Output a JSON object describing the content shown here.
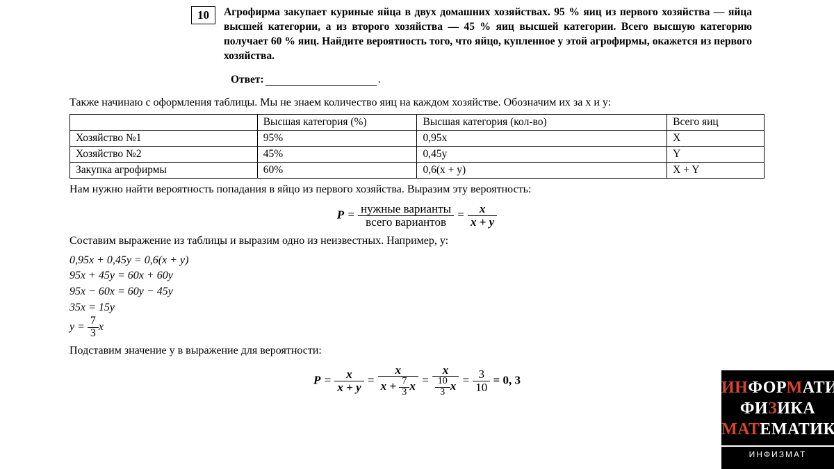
{
  "problem": {
    "number": "10",
    "text": "Агрофирма закупает куриные яйца в двух домашних хозяйствах. 95 % яиц из первого хозяйства — яйца высшей категории, а из второго хозяйства — 45 % яиц высшей категории. Всего высшую категорию получает 60 % яиц. Найдите вероятность того, что яйцо, купленное у этой агрофирмы, окажется из первого хозяйства.",
    "answer_label": "Ответ:"
  },
  "intro": "Также начинаю с оформления таблицы. Мы не знаем количество яиц на каждом хозяйстве. Обозначим их за х и у:",
  "table": {
    "headers": [
      "",
      "Высшая категория (%)",
      "Высшая категория (кол-во)",
      "Всего яиц"
    ],
    "rows": [
      [
        "Хозяйство №1",
        "95%",
        "0,95x",
        "X"
      ],
      [
        "Хозяйство №2",
        "45%",
        "0,45y",
        "Y"
      ],
      [
        "Закупка агрофирмы",
        "60%",
        "0,6(x + y)",
        "X + Y"
      ]
    ]
  },
  "after_table": "Нам нужно найти вероятность попадания в яйцо из первого хозяйства. Выразим эту вероятность:",
  "formula1": {
    "lhs": "P",
    "num1": "нужные варианты",
    "den1": "всего вариантов",
    "num2": "x",
    "den2": "x + y"
  },
  "mid_text": "Составим выражение из таблицы и выразим одно из неизвестных. Например, у:",
  "equations": [
    "0,95x + 0,45y = 0,6(x + y)",
    "95x + 45y = 60x + 60y",
    "95x − 60x = 60y − 45y",
    "35x = 15y"
  ],
  "eq_frac": {
    "lhs": "y =",
    "num": "7",
    "den": "3",
    "rhs": "x"
  },
  "sub_text": "Подставим значение у в выражение для вероятности:",
  "formula2": {
    "lhs": "P",
    "f1_num": "x",
    "f1_den": "x + y",
    "f2_num": "x",
    "f2_den_a": "x +",
    "f2_den_fnum": "7",
    "f2_den_fden": "3",
    "f2_den_b": "x",
    "f3_num": "x",
    "f3_den_fnum": "10",
    "f3_den_fden": "3",
    "f3_den_b": "x",
    "f4_num": "3",
    "f4_den": "10",
    "result": "= 0, 3"
  },
  "logo": {
    "row1a": "ИН",
    "row1b": "ФОР",
    "row1c": "М",
    "row1d": "АТИК",
    "row1e": "А",
    "row2a": "ФИ",
    "row2b": "З",
    "row2c": "ИКА",
    "row3a": "МАТ",
    "row3b": "ЕМАТИК",
    "row3c": "А",
    "footer": "ИНФИЗМАТ"
  }
}
